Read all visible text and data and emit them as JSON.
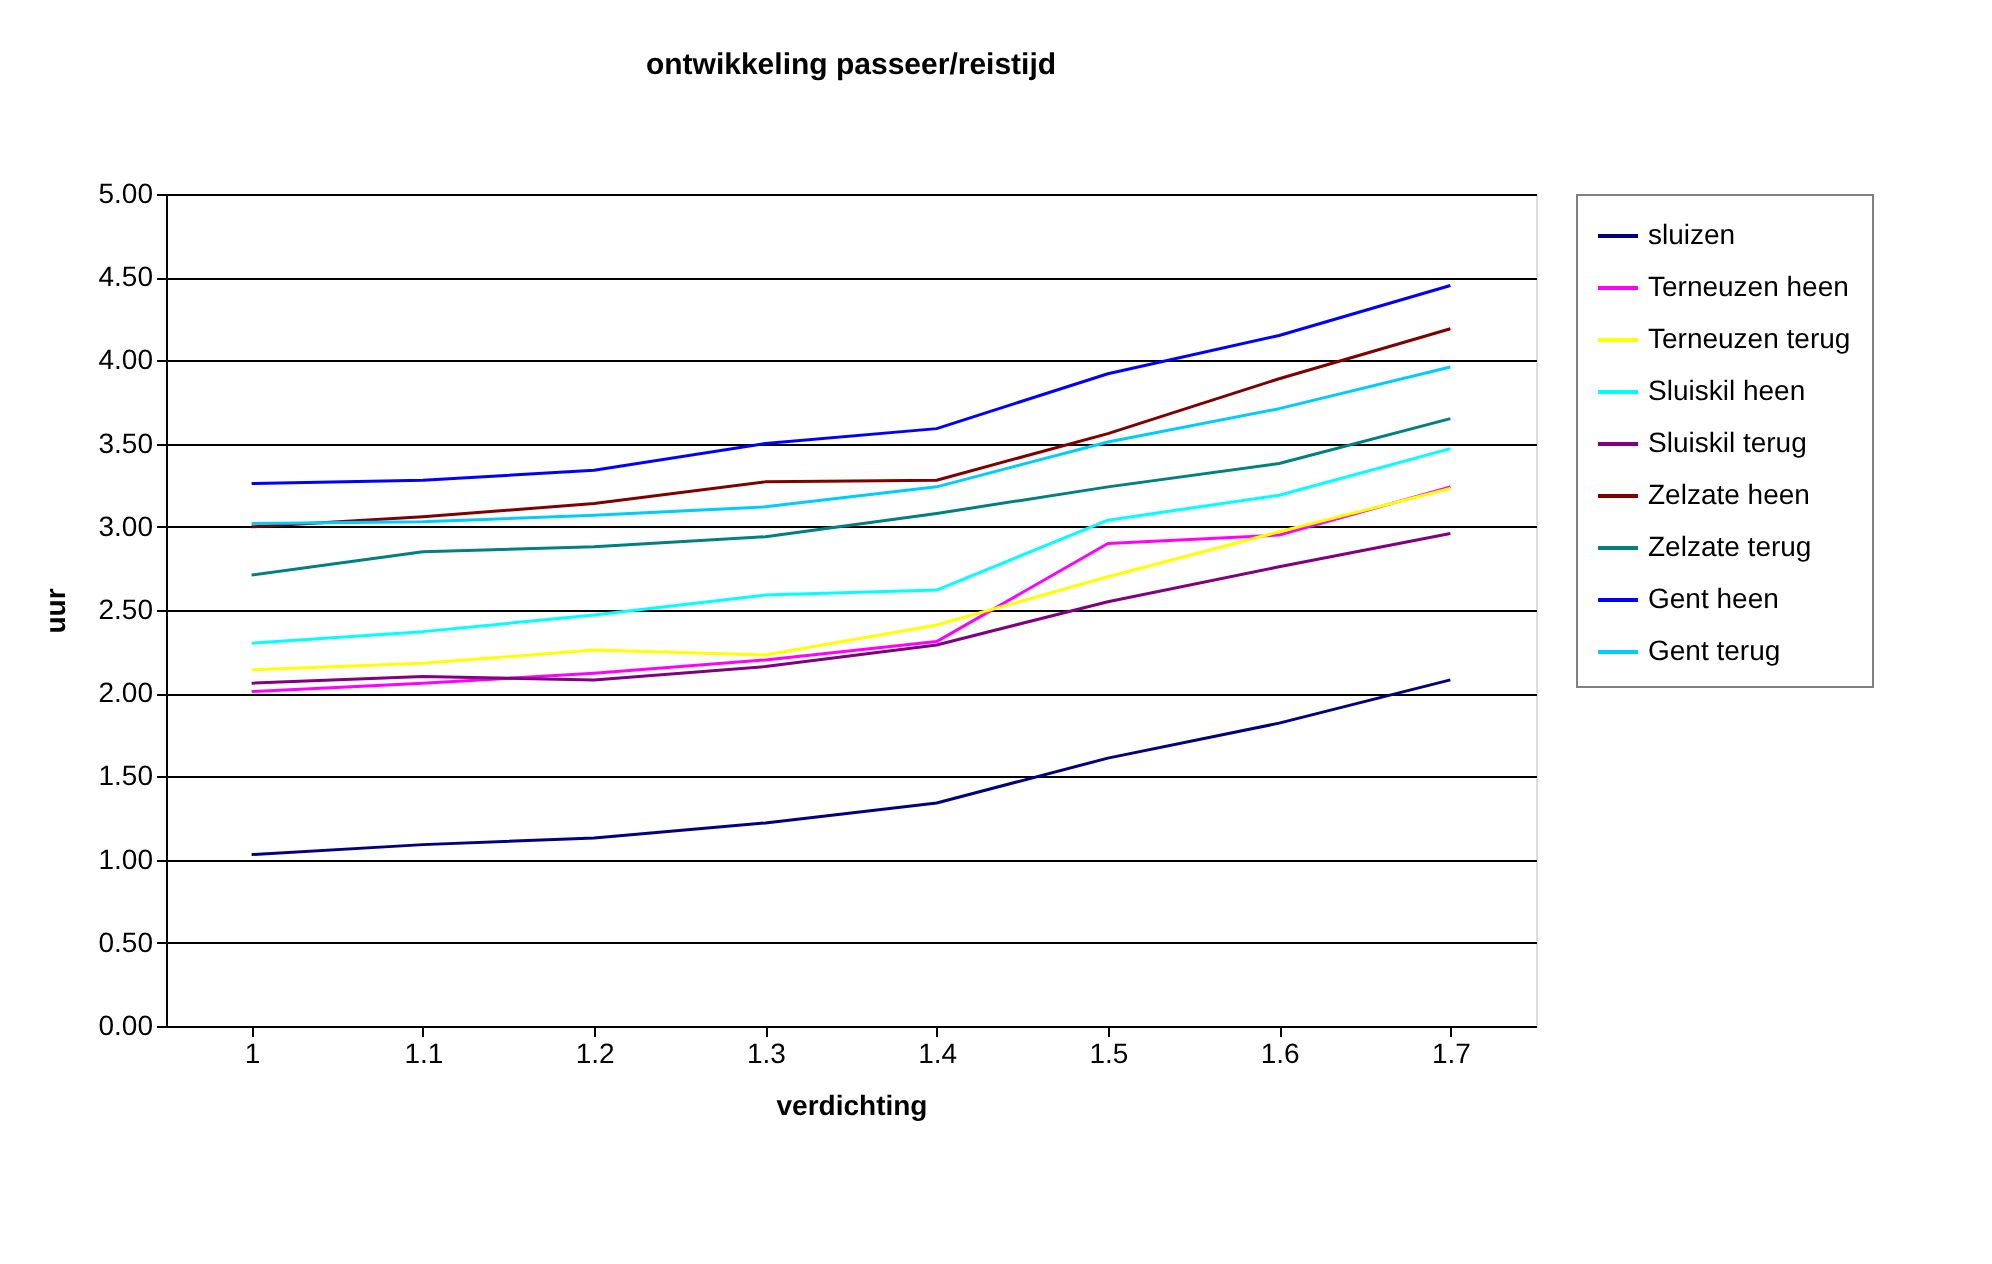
{
  "chart_data": {
    "type": "line",
    "title": "ontwikkeling passeer/reistijd",
    "xlabel": "verdichting",
    "ylabel": "uur",
    "categories": [
      "1",
      "1.1",
      "1.2",
      "1.3",
      "1.4",
      "1.5",
      "1.6",
      "1.7"
    ],
    "ylim": [
      0,
      5
    ],
    "yticks": [
      {
        "value": 0,
        "label": "0.00"
      },
      {
        "value": 0.5,
        "label": "0.50"
      },
      {
        "value": 1,
        "label": "1.00"
      },
      {
        "value": 1.5,
        "label": "1.50"
      },
      {
        "value": 2,
        "label": "2.00"
      },
      {
        "value": 2.5,
        "label": "2.50"
      },
      {
        "value": 3,
        "label": "3.00"
      },
      {
        "value": 3.5,
        "label": "3.50"
      },
      {
        "value": 4,
        "label": "4.00"
      },
      {
        "value": 4.5,
        "label": "4.50"
      },
      {
        "value": 5,
        "label": "5.00"
      }
    ],
    "grid": "y",
    "legend": "right",
    "marker": "none",
    "line_style": "solid",
    "series": [
      {
        "name": "sluizen",
        "color": "#000080",
        "values": [
          1.03,
          1.09,
          1.13,
          1.22,
          1.34,
          1.61,
          1.82,
          2.08
        ]
      },
      {
        "name": "Terneuzen heen",
        "color": "#ff00ff",
        "values": [
          2.01,
          2.06,
          2.12,
          2.2,
          2.31,
          2.9,
          2.95,
          3.24
        ]
      },
      {
        "name": "Terneuzen terug",
        "color": "#ffff00",
        "values": [
          2.14,
          2.18,
          2.26,
          2.23,
          2.41,
          2.7,
          2.97,
          3.23
        ]
      },
      {
        "name": "Sluiskil heen",
        "color": "#00ffff",
        "values": [
          2.3,
          2.37,
          2.47,
          2.59,
          2.62,
          3.04,
          3.19,
          3.47
        ]
      },
      {
        "name": "Sluiskil terug",
        "color": "#800080",
        "values": [
          2.06,
          2.1,
          2.08,
          2.16,
          2.29,
          2.55,
          2.76,
          2.96
        ]
      },
      {
        "name": "Zelzate heen",
        "color": "#800000",
        "values": [
          3.0,
          3.06,
          3.14,
          3.27,
          3.28,
          3.56,
          3.89,
          4.19
        ]
      },
      {
        "name": "Zelzate terug",
        "color": "#008080",
        "values": [
          2.71,
          2.85,
          2.88,
          2.94,
          3.08,
          3.24,
          3.38,
          3.65
        ]
      },
      {
        "name": "Gent heen",
        "color": "#0000ff",
        "values": [
          3.26,
          3.28,
          3.34,
          3.5,
          3.59,
          3.92,
          4.15,
          4.45
        ]
      },
      {
        "name": "Gent terug",
        "color": "#00ccff",
        "values": [
          3.02,
          3.03,
          3.07,
          3.12,
          3.24,
          3.51,
          3.71,
          3.96
        ]
      }
    ]
  }
}
